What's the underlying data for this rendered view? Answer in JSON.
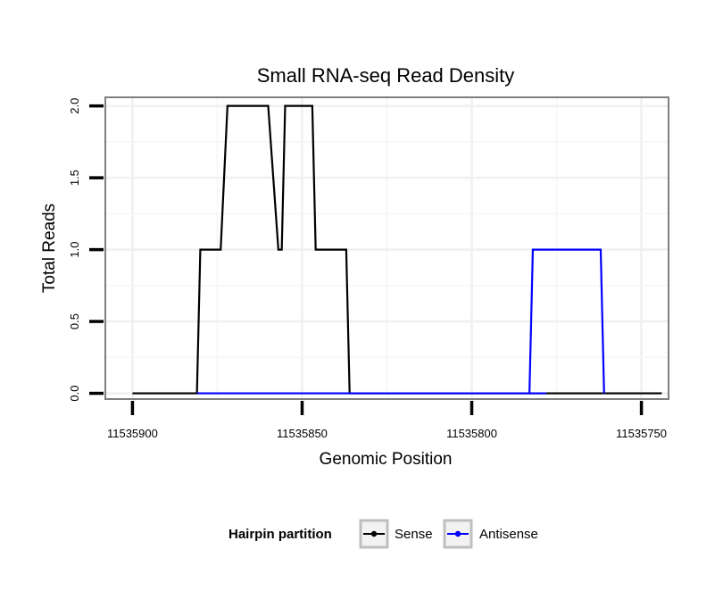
{
  "chart_data": {
    "type": "line",
    "title": "Small RNA-seq Read Density",
    "xlabel": "Genomic Position",
    "ylabel": "Total Reads",
    "x_reversed": true,
    "xlim": [
      11535908,
      11535742
    ],
    "ylim": [
      -0.04,
      2.06
    ],
    "x_ticks": [
      11535900,
      11535850,
      11535800,
      11535750
    ],
    "x_tick_labels": [
      "11535900",
      "11535850",
      "11535800",
      "11535750"
    ],
    "y_ticks": [
      0,
      0.5,
      1,
      1.5,
      2
    ],
    "y_tick_labels": [
      "0.0",
      "0.5",
      "1.0",
      "1.5",
      "2.0"
    ],
    "grid": true,
    "legend": {
      "title": "Hairpin partition",
      "position": "bottom",
      "entries": [
        {
          "label": "Sense",
          "color": "#000000"
        },
        {
          "label": "Antisense",
          "color": "#0000ff"
        }
      ]
    },
    "series": [
      {
        "name": "Sense",
        "color": "#000000",
        "x": [
          11535900,
          11535881,
          11535880,
          11535874,
          11535872,
          11535860,
          11535857,
          11535856,
          11535855,
          11535853,
          11535850,
          11535847,
          11535846,
          11535837,
          11535836,
          11535821,
          11535820,
          11535818,
          11535817,
          11535779,
          11535778,
          11535744
        ],
        "y": [
          0,
          0,
          1,
          1,
          2,
          2,
          1,
          1,
          2,
          2,
          2,
          2,
          1,
          1,
          0,
          0,
          0,
          0,
          0,
          0,
          0,
          0
        ]
      },
      {
        "name": "Antisense",
        "color": "#0000ff",
        "x": [
          11535881,
          11535836,
          11535818,
          11535817,
          11535798,
          11535797,
          11535778
        ],
        "y": [
          0,
          0,
          0,
          0,
          0,
          0,
          0
        ]
      },
      {
        "name": "Antisense",
        "color": "#0000ff",
        "x": [
          11535783,
          11535782,
          11535762,
          11535761
        ],
        "y": [
          0,
          1,
          1,
          0
        ]
      }
    ]
  }
}
